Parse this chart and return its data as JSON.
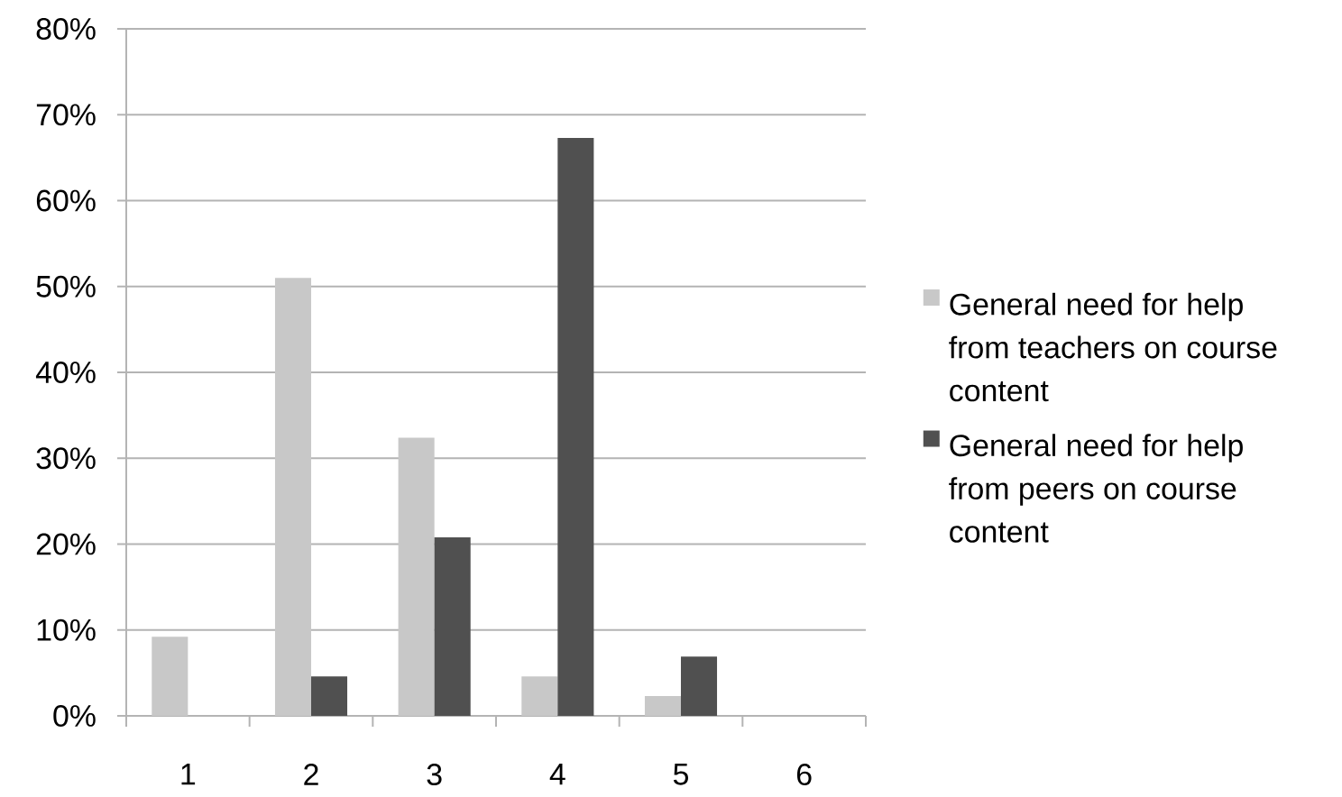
{
  "chart_data": {
    "type": "bar",
    "categories": [
      "1",
      "2",
      "3",
      "4",
      "5",
      "6"
    ],
    "series": [
      {
        "name": "General need for help from teachers on course content",
        "color": "#c8c8c8",
        "values": [
          9.2,
          51,
          32.4,
          4.6,
          2.3,
          0
        ]
      },
      {
        "name": "General need for help from peers on course content",
        "color": "#505050",
        "values": [
          0,
          4.6,
          20.8,
          67.3,
          6.9,
          0
        ]
      }
    ],
    "ylim": [
      0,
      80
    ],
    "yticks": [
      {
        "value": 0,
        "label": "0%"
      },
      {
        "value": 10,
        "label": "10%"
      },
      {
        "value": 20,
        "label": "20%"
      },
      {
        "value": 30,
        "label": "30%"
      },
      {
        "value": 40,
        "label": "40%"
      },
      {
        "value": 50,
        "label": "50%"
      },
      {
        "value": 60,
        "label": "60%"
      },
      {
        "value": 70,
        "label": "70%"
      },
      {
        "value": 80,
        "label": "80%"
      }
    ],
    "grid": "y",
    "legend": "right"
  }
}
